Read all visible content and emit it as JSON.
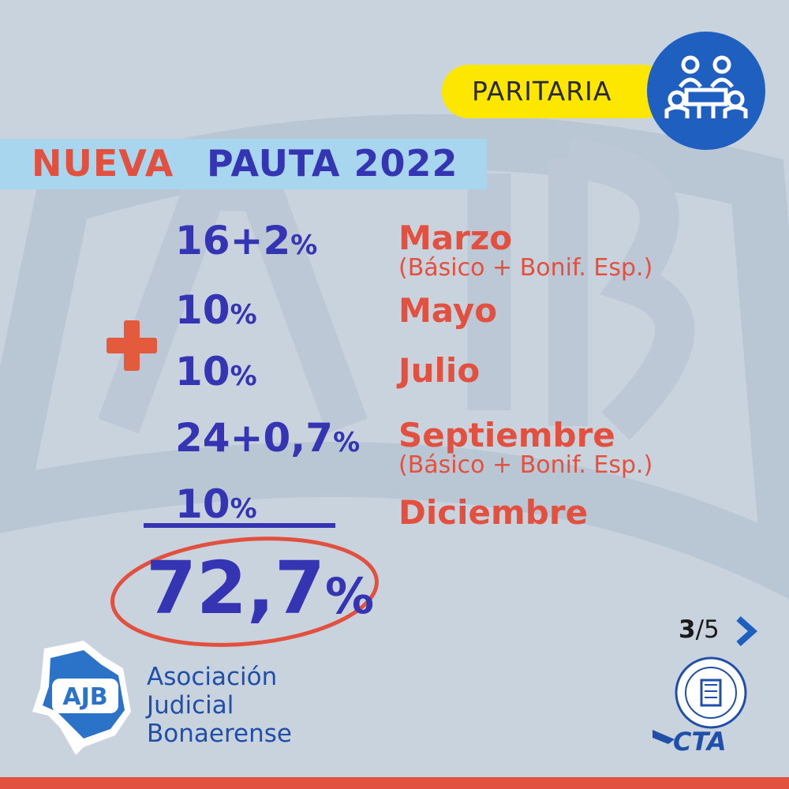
{
  "badge": {
    "label": "PARITARIA",
    "icon": "meeting-icon"
  },
  "headline": {
    "part1": "NUEVA",
    "part2": "PAUTA 2022"
  },
  "rows": [
    {
      "value": "16+2",
      "unit": "%",
      "month": "Marzo",
      "note": "(Básico + Bonif. Esp.)"
    },
    {
      "value": "10",
      "unit": "%",
      "month": "Mayo",
      "note": ""
    },
    {
      "value": "10",
      "unit": "%",
      "month": "Julio",
      "note": ""
    },
    {
      "value": "24+0,7",
      "unit": "%",
      "month": "Septiembre",
      "note": "(Básico + Bonif. Esp.)"
    },
    {
      "value": "10",
      "unit": "%",
      "month": "Diciembre",
      "note": ""
    }
  ],
  "total": {
    "value": "72,7",
    "unit": "%"
  },
  "pager": {
    "current": "3",
    "separator": "/",
    "total": "5"
  },
  "org": {
    "logo_text": "AJB",
    "line1": "Asociación",
    "line2": "Judicial",
    "line3": "Bonaerense"
  },
  "partners": {
    "cta_text": "CTA"
  },
  "colors": {
    "blue": "#3535b3",
    "red": "#e2513f",
    "yellow": "#fde600",
    "background": "#c9d3de"
  }
}
